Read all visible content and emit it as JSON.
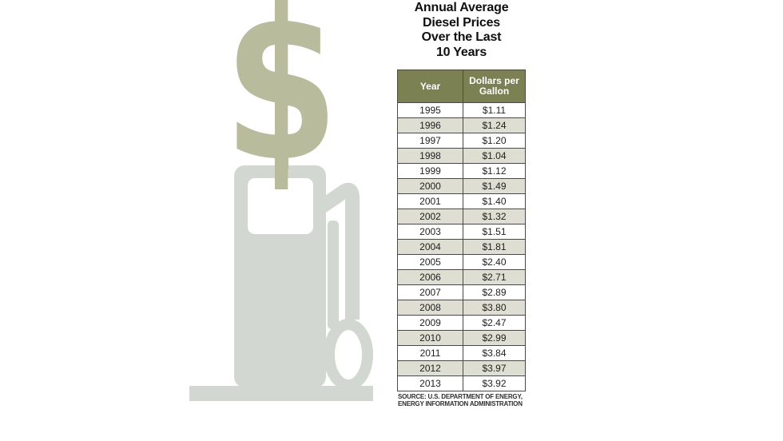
{
  "title": {
    "lines": [
      "Annual Average",
      "Diesel Prices",
      "Over the Last",
      "10 Years"
    ]
  },
  "table": {
    "header": {
      "year": "Year",
      "price": "Dollars per Gallon"
    },
    "rows": [
      {
        "year": "1995",
        "price": "$1.11"
      },
      {
        "year": "1996",
        "price": "$1.24"
      },
      {
        "year": "1997",
        "price": "$1.20"
      },
      {
        "year": "1998",
        "price": "$1.04"
      },
      {
        "year": "1999",
        "price": "$1.12"
      },
      {
        "year": "2000",
        "price": "$1.49"
      },
      {
        "year": "2001",
        "price": "$1.40"
      },
      {
        "year": "2002",
        "price": "$1.32"
      },
      {
        "year": "2003",
        "price": "$1.51"
      },
      {
        "year": "2004",
        "price": "$1.81"
      },
      {
        "year": "2005",
        "price": "$2.40"
      },
      {
        "year": "2006",
        "price": "$2.71"
      },
      {
        "year": "2007",
        "price": "$2.89"
      },
      {
        "year": "2008",
        "price": "$3.80"
      },
      {
        "year": "2009",
        "price": "$2.47"
      },
      {
        "year": "2010",
        "price": "$2.99"
      },
      {
        "year": "2011",
        "price": "$3.84"
      },
      {
        "year": "2012",
        "price": "$3.97"
      },
      {
        "year": "2013",
        "price": "$3.92"
      }
    ]
  },
  "source": {
    "line1": "SOURCE: U.S. DEPARTMENT OF ENERGY,",
    "line2": "ENERGY INFORMATION ADMINISTRATION"
  },
  "illustration": {
    "dollar_sign": "$"
  },
  "colors": {
    "header_olive": "#7c8154",
    "dollar_olive": "#b9bc9c",
    "pump_gray": "#d3d7d2",
    "row_alt": "#dfded3",
    "border": "#494949"
  },
  "chart_data": {
    "type": "table",
    "title": "Annual Average Diesel Prices Over the Last 10 Years",
    "columns": [
      "Year",
      "Dollars per Gallon"
    ],
    "categories": [
      1995,
      1996,
      1997,
      1998,
      1999,
      2000,
      2001,
      2002,
      2003,
      2004,
      2005,
      2006,
      2007,
      2008,
      2009,
      2010,
      2011,
      2012,
      2013
    ],
    "values": [
      1.11,
      1.24,
      1.2,
      1.04,
      1.12,
      1.49,
      1.4,
      1.32,
      1.51,
      1.81,
      2.4,
      2.71,
      2.89,
      3.8,
      2.47,
      2.99,
      3.84,
      3.97,
      3.92
    ],
    "unit": "USD per gallon",
    "source": "SOURCE: U.S. DEPARTMENT OF ENERGY, ENERGY INFORMATION ADMINISTRATION"
  }
}
